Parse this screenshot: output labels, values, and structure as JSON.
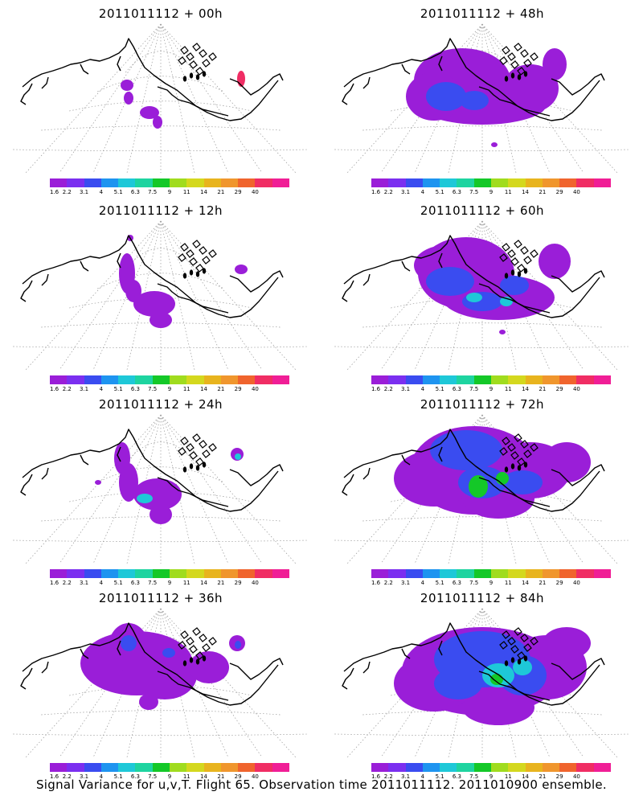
{
  "panels": [
    {
      "title": "2011011112 + 00h"
    },
    {
      "title": "2011011112 + 48h"
    },
    {
      "title": "2011011112 + 12h"
    },
    {
      "title": "2011011112 + 60h"
    },
    {
      "title": "2011011112 + 24h"
    },
    {
      "title": "2011011112 + 72h"
    },
    {
      "title": "2011011112 + 36h"
    },
    {
      "title": "2011011112 + 84h"
    }
  ],
  "colorbar": {
    "colors": [
      "#9a1ed8",
      "#7b2ff0",
      "#3a4cf0",
      "#1e94f0",
      "#1ec8d8",
      "#1ed4a0",
      "#14c828",
      "#a0dc1e",
      "#d4d81e",
      "#e8b41e",
      "#f0962d",
      "#f0642d",
      "#f02d64",
      "#f01e96"
    ],
    "labels": [
      "1.6",
      "2.2",
      "3.1",
      "4",
      "5.1",
      "6.3",
      "7.5",
      "9",
      "11",
      "14",
      "21",
      "29",
      "40"
    ]
  },
  "footer": "Signal Variance for u,v,T. Flight 65. Observation time 2011011112. 2011010900 ensemble."
}
